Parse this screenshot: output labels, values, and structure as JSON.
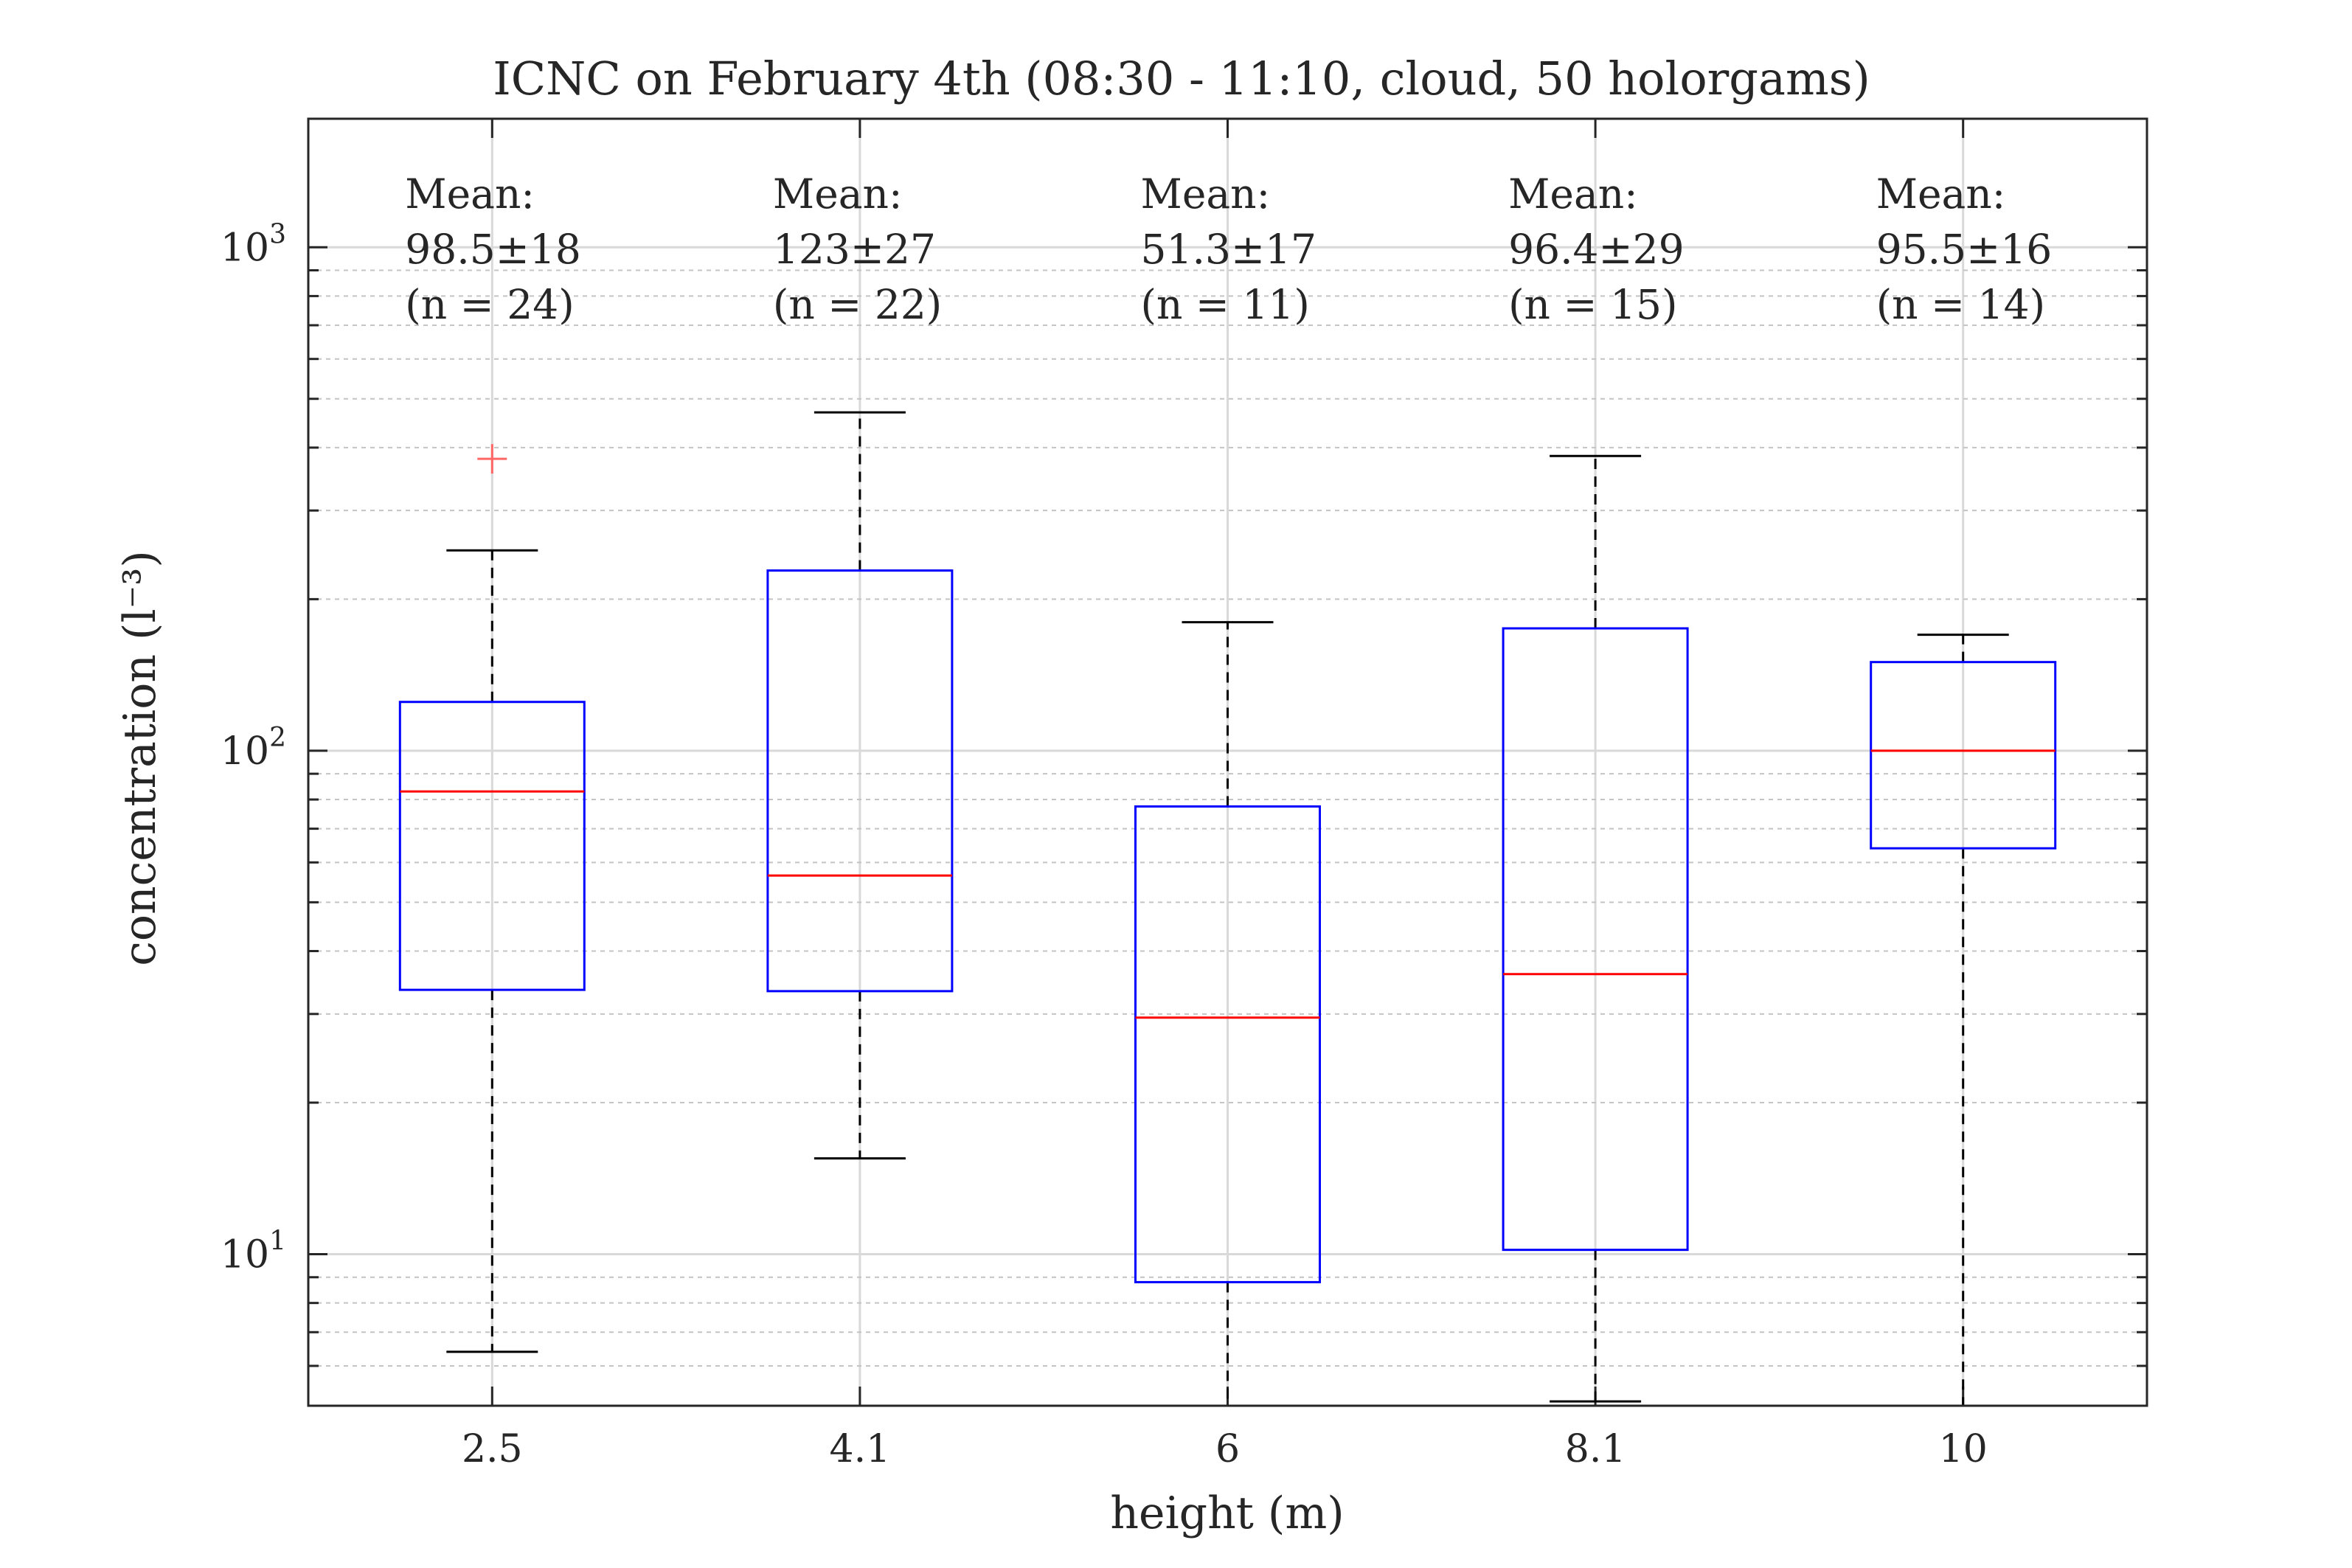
{
  "chart_data": {
    "type": "box",
    "title": "ICNC on February 4th (08:30 - 11:10, cloud, 50 holorgams)",
    "xlabel": "height (m)",
    "ylabel": "concentration (l⁻³)",
    "yscale": "log",
    "ylim": [
      5,
      1800
    ],
    "grid": true,
    "ytick_labels": [
      {
        "value": 10,
        "base": "10",
        "exp": "1"
      },
      {
        "value": 100,
        "base": "10",
        "exp": "2"
      },
      {
        "value": 1000,
        "base": "10",
        "exp": "3"
      }
    ],
    "categories": [
      "2.5",
      "4.1",
      "6",
      "8.1",
      "10"
    ],
    "boxes": [
      {
        "whisker_low": 6.4,
        "q1": 33.5,
        "median": 83,
        "q3": 125,
        "whisker_high": 250,
        "outliers": [
          380
        ]
      },
      {
        "whisker_low": 15.5,
        "q1": 33.3,
        "median": 56.5,
        "q3": 228,
        "whisker_high": 470,
        "outliers": []
      },
      {
        "whisker_low": 5,
        "q1": 8.8,
        "median": 29.5,
        "q3": 77.5,
        "whisker_high": 180,
        "outliers": []
      },
      {
        "whisker_low": 5.1,
        "q1": 10.2,
        "median": 36,
        "q3": 175,
        "whisker_high": 385,
        "outliers": []
      },
      {
        "whisker_low": 5,
        "q1": 64,
        "median": 100,
        "q3": 150,
        "whisker_high": 170,
        "outliers": []
      }
    ],
    "annotations": [
      {
        "label": "Mean:",
        "value": "98.5±18",
        "n": "(n = 24)"
      },
      {
        "label": "Mean:",
        "value": "123±27",
        "n": "(n = 22)"
      },
      {
        "label": "Mean:",
        "value": "51.3±17",
        "n": "(n = 11)"
      },
      {
        "label": "Mean:",
        "value": "96.4±29",
        "n": "(n = 15)"
      },
      {
        "label": "Mean:",
        "value": "95.5±16",
        "n": "(n = 14)"
      }
    ],
    "colors": {
      "box": "#0000ff",
      "median": "#ff0000",
      "whisker": "#000000",
      "outlier": "#ff6666"
    }
  }
}
